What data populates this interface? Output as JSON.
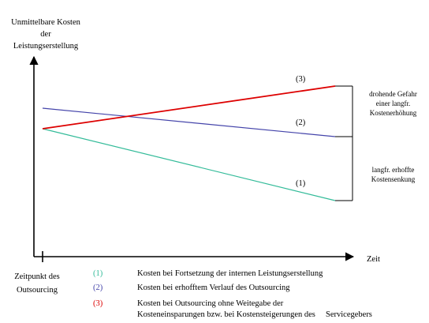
{
  "y_axis_label": [
    "Unmittelbare Kosten",
    "der",
    "Leistungserstellung"
  ],
  "x_axis_label": "Zeit",
  "origin_label": [
    "Zeitpunkt des",
    "Outsourcing"
  ],
  "lines": [
    {
      "id": "1",
      "marker": "(1)",
      "color": "#33bb99"
    },
    {
      "id": "2",
      "marker": "(2)",
      "color": "#4444aa"
    },
    {
      "id": "3",
      "marker": "(3)",
      "color": "#dd0000"
    }
  ],
  "bracket_upper": [
    "drohende Gefahr",
    "einer langfr.",
    "Kostenerhöhung"
  ],
  "bracket_lower": [
    "langfr. erhoffte",
    "Kostensenkung"
  ],
  "legend": [
    {
      "key": "(1)",
      "color": "#33bb99",
      "text": [
        "Kosten bei Fortsetzung der internen Leistungserstellung"
      ]
    },
    {
      "key": "(2)",
      "color": "#4444aa",
      "text": [
        "Kosten bei erhofftem Verlauf des Outsourcing"
      ]
    },
    {
      "key": "(3)",
      "color": "#dd0000",
      "text": [
        "Kosten bei Outsourcing ohne Weitegabe der",
        "Kosteneinsparungen bzw. bei Kostensteigerungen des     Servicegebers"
      ]
    }
  ]
}
